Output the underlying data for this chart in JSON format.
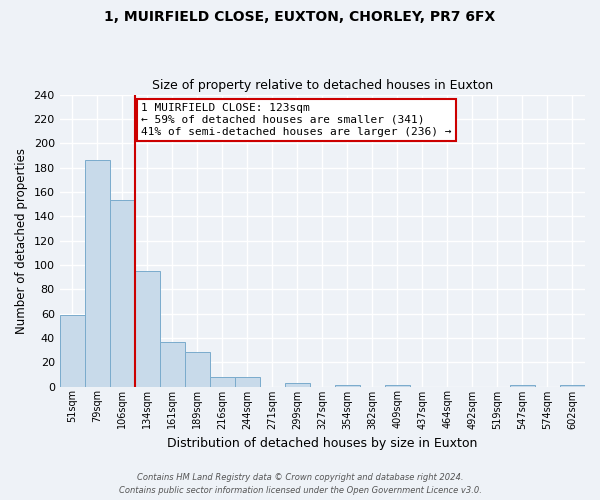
{
  "title": "1, MUIRFIELD CLOSE, EUXTON, CHORLEY, PR7 6FX",
  "subtitle": "Size of property relative to detached houses in Euxton",
  "xlabel": "Distribution of detached houses by size in Euxton",
  "ylabel": "Number of detached properties",
  "bin_labels": [
    "51sqm",
    "79sqm",
    "106sqm",
    "134sqm",
    "161sqm",
    "189sqm",
    "216sqm",
    "244sqm",
    "271sqm",
    "299sqm",
    "327sqm",
    "354sqm",
    "382sqm",
    "409sqm",
    "437sqm",
    "464sqm",
    "492sqm",
    "519sqm",
    "547sqm",
    "574sqm",
    "602sqm"
  ],
  "bar_heights": [
    59,
    186,
    153,
    95,
    37,
    28,
    8,
    8,
    0,
    3,
    0,
    1,
    0,
    1,
    0,
    0,
    0,
    0,
    1,
    0,
    1
  ],
  "bar_color": "#c8daea",
  "bar_edge_color": "#7aabcc",
  "vline_x_index": 3,
  "vline_color": "#cc0000",
  "ylim": [
    0,
    240
  ],
  "yticks": [
    0,
    20,
    40,
    60,
    80,
    100,
    120,
    140,
    160,
    180,
    200,
    220,
    240
  ],
  "annotation_line1": "1 MUIRFIELD CLOSE: 123sqm",
  "annotation_line2": "← 59% of detached houses are smaller (341)",
  "annotation_line3": "41% of semi-detached houses are larger (236) →",
  "annotation_box_color": "#ffffff",
  "annotation_box_edge": "#cc0000",
  "footer_line1": "Contains HM Land Registry data © Crown copyright and database right 2024.",
  "footer_line2": "Contains public sector information licensed under the Open Government Licence v3.0.",
  "background_color": "#eef2f7",
  "grid_color": "#ffffff"
}
